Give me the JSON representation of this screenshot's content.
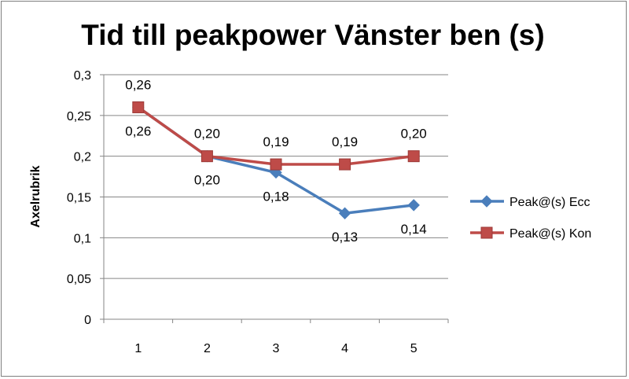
{
  "chart_data": {
    "type": "line",
    "title": "Tid till peakpower Vänster ben (s)",
    "xlabel": "",
    "ylabel": "Axelrubrik",
    "categories": [
      "1",
      "2",
      "3",
      "4",
      "5"
    ],
    "ylim": [
      0,
      0.3
    ],
    "yticks": [
      0,
      0.05,
      0.1,
      0.15,
      0.2,
      0.25,
      0.3
    ],
    "ytick_labels": [
      "0",
      "0,05",
      "0,1",
      "0,15",
      "0,2",
      "0,25",
      "0,3"
    ],
    "grid": true,
    "legend_position": "right",
    "series": [
      {
        "name": "Peak@(s) Ecc",
        "values": [
          0.26,
          0.2,
          0.18,
          0.13,
          0.14
        ],
        "labels": [
          "0,26",
          "0,20",
          "0,18",
          "0,13",
          "0,14"
        ],
        "label_position": "below",
        "color": "#4a7ebb",
        "marker": "diamond"
      },
      {
        "name": "Peak@(s) Kon",
        "values": [
          0.26,
          0.2,
          0.19,
          0.19,
          0.2
        ],
        "labels": [
          "0,26",
          "0,20",
          "0,19",
          "0,19",
          "0,20"
        ],
        "label_position": "above",
        "color": "#be4b48",
        "marker": "square"
      }
    ]
  }
}
